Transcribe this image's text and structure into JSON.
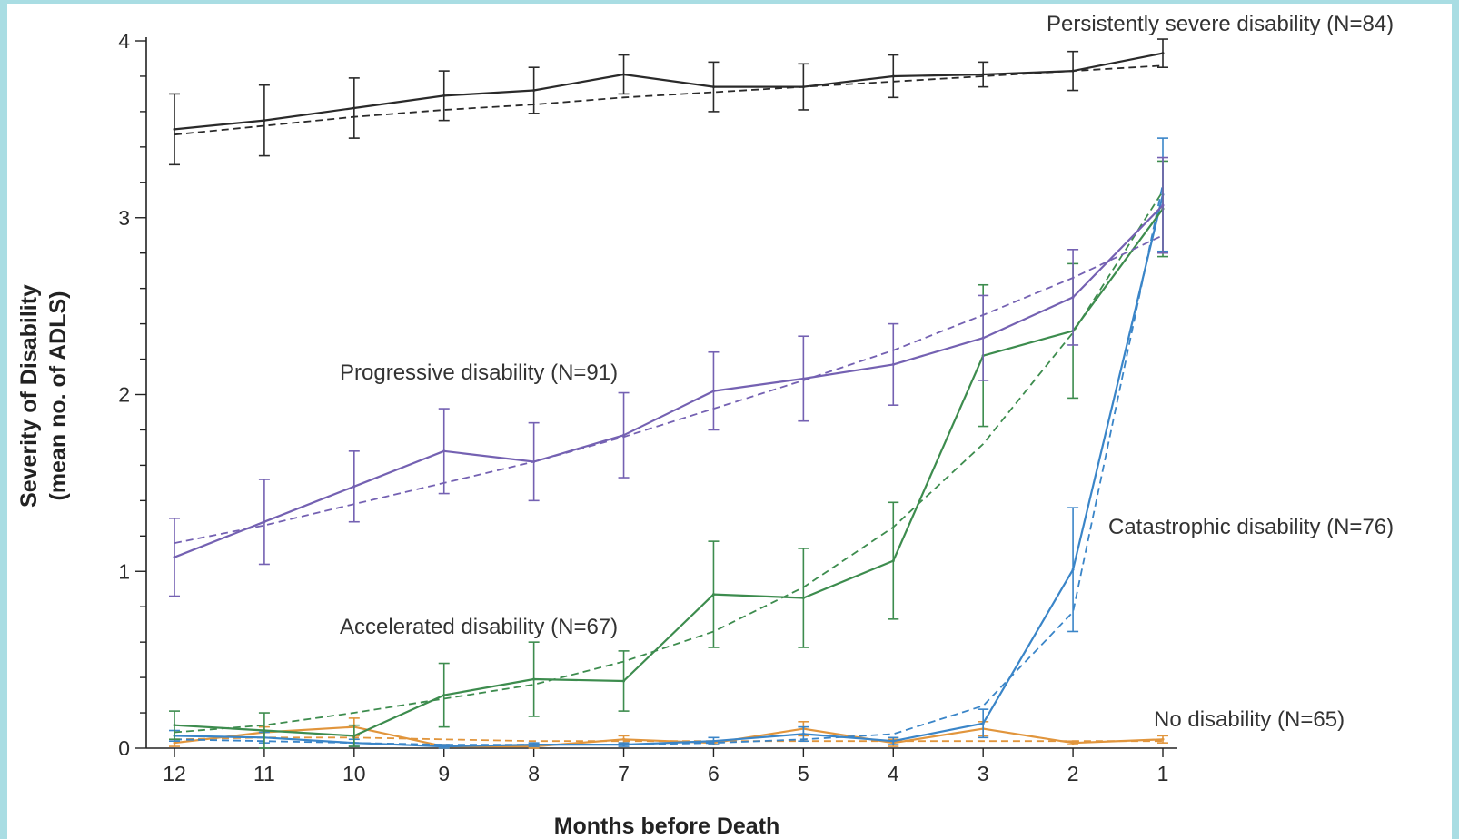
{
  "chart_data": {
    "type": "line",
    "title": "",
    "xlabel": "Months before Death",
    "ylabel_line1": "Severity of Disability",
    "ylabel_line2": "(mean no. of ADLS)",
    "x": [
      12,
      11,
      10,
      9,
      8,
      7,
      6,
      5,
      4,
      3,
      2,
      1
    ],
    "x_ticks": [
      "12",
      "11",
      "10",
      "9",
      "8",
      "7",
      "6",
      "5",
      "4",
      "3",
      "2",
      "1"
    ],
    "y_ticks": [
      "0",
      "1",
      "2",
      "3",
      "4"
    ],
    "ylim": [
      0,
      4
    ],
    "xlim": [
      12,
      1
    ],
    "grid": false,
    "legend": "none (inline labels)",
    "series": [
      {
        "name": "Persistently severe disability (N=84)",
        "color": "#2a2a2a",
        "values": [
          3.5,
          3.55,
          3.62,
          3.69,
          3.72,
          3.81,
          3.74,
          3.74,
          3.8,
          3.81,
          3.83,
          3.93
        ],
        "err": [
          0.2,
          0.2,
          0.17,
          0.14,
          0.13,
          0.11,
          0.14,
          0.13,
          0.12,
          0.07,
          0.11,
          0.08
        ],
        "trend": [
          3.47,
          3.52,
          3.57,
          3.61,
          3.64,
          3.68,
          3.71,
          3.74,
          3.77,
          3.8,
          3.83,
          3.86
        ]
      },
      {
        "name": "Progressive disability (N=91)",
        "color": "#7461b2",
        "values": [
          1.08,
          1.28,
          1.48,
          1.68,
          1.62,
          1.77,
          2.02,
          2.09,
          2.17,
          2.32,
          2.55,
          3.07
        ],
        "err": [
          0.22,
          0.24,
          0.2,
          0.24,
          0.22,
          0.24,
          0.22,
          0.24,
          0.23,
          0.24,
          0.27,
          0.27
        ],
        "trend": [
          1.16,
          1.26,
          1.38,
          1.5,
          1.62,
          1.76,
          1.92,
          2.08,
          2.25,
          2.45,
          2.66,
          2.9
        ]
      },
      {
        "name": "Accelerated disability (N=67)",
        "color": "#3d8c4e",
        "values": [
          0.13,
          0.1,
          0.07,
          0.3,
          0.39,
          0.38,
          0.87,
          0.85,
          1.06,
          2.22,
          2.36,
          3.05
        ],
        "err": [
          0.08,
          0.1,
          0.06,
          0.18,
          0.21,
          0.17,
          0.3,
          0.28,
          0.33,
          0.4,
          0.38,
          0.27
        ],
        "trend": [
          0.09,
          0.13,
          0.2,
          0.28,
          0.36,
          0.49,
          0.66,
          0.91,
          1.25,
          1.72,
          2.35,
          3.15
        ]
      },
      {
        "name": "Catastrophic disability (N=76)",
        "color": "#3a85c8",
        "values": [
          0.07,
          0.06,
          0.03,
          0.01,
          0.02,
          0.02,
          0.04,
          0.08,
          0.04,
          0.14,
          1.01,
          3.13
        ],
        "err": [
          0.03,
          0.03,
          0.02,
          0.01,
          0.01,
          0.01,
          0.02,
          0.04,
          0.02,
          0.08,
          0.35,
          0.32
        ],
        "trend": [
          0.05,
          0.04,
          0.03,
          0.02,
          0.02,
          0.02,
          0.03,
          0.05,
          0.08,
          0.24,
          0.77,
          3.19
        ]
      },
      {
        "name": "No disability (N=65)",
        "color": "#e1953c",
        "values": [
          0.03,
          0.09,
          0.12,
          0.01,
          0.01,
          0.05,
          0.03,
          0.11,
          0.03,
          0.11,
          0.03,
          0.05
        ],
        "err": [
          0.02,
          0.03,
          0.05,
          0.01,
          0.01,
          0.02,
          0.01,
          0.04,
          0.02,
          0.04,
          0.01,
          0.02
        ],
        "trend": [
          0.05,
          0.06,
          0.06,
          0.05,
          0.04,
          0.04,
          0.04,
          0.04,
          0.04,
          0.04,
          0.04,
          0.04
        ]
      }
    ]
  }
}
